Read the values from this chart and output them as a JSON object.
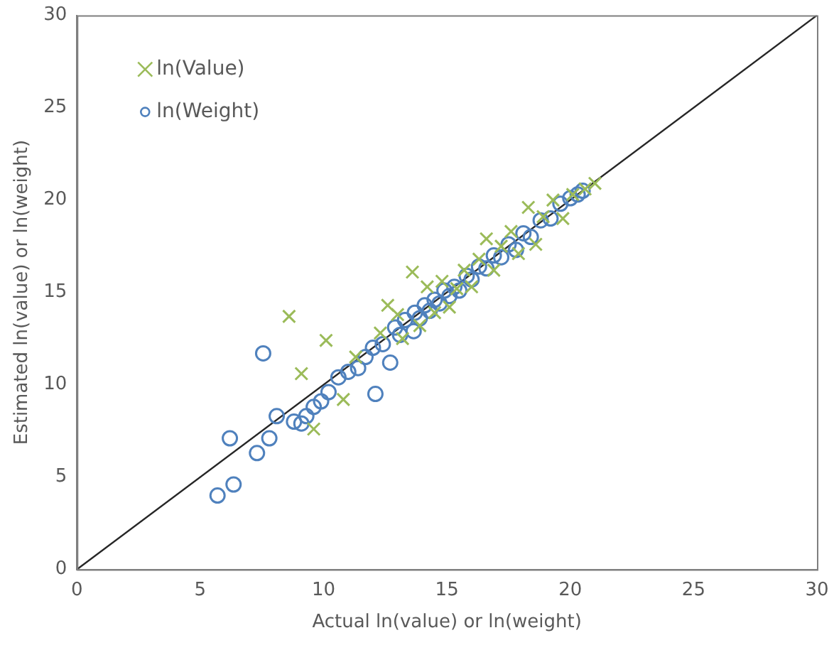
{
  "chart_data": {
    "type": "scatter",
    "xlabel": "Actual ln(value) or ln(weight)",
    "ylabel": "Estimated ln(value) or ln(weight)",
    "xlim": [
      0,
      30
    ],
    "ylim": [
      0,
      30
    ],
    "xticks": [
      0,
      5,
      10,
      15,
      20,
      25,
      30
    ],
    "yticks": [
      0,
      5,
      10,
      15,
      20,
      25,
      30
    ],
    "grid": false,
    "legend": "top left",
    "series": [
      {
        "name": "ln(Value)",
        "color": "#9bbb59",
        "marker": "cross",
        "x": [
          8.6,
          9.1,
          9.6,
          10.1,
          10.8,
          11.3,
          12.3,
          12.6,
          13.2,
          13.0,
          13.6,
          13.9,
          14.2,
          14.5,
          14.8,
          15.1,
          15.4,
          15.7,
          16.0,
          16.3,
          16.6,
          16.9,
          17.2,
          17.6,
          17.9,
          18.3,
          18.6,
          18.9,
          19.3,
          19.7,
          20.1,
          20.6,
          21.0
        ],
        "values": [
          13.7,
          10.6,
          7.6,
          12.4,
          9.2,
          11.5,
          12.8,
          14.3,
          12.5,
          13.8,
          16.1,
          13.2,
          15.3,
          13.9,
          15.6,
          14.2,
          15.2,
          16.2,
          15.3,
          16.8,
          17.9,
          16.2,
          17.5,
          18.3,
          17.1,
          19.6,
          17.6,
          19.1,
          20.0,
          19.0,
          20.3,
          20.6,
          20.9
        ]
      },
      {
        "name": "ln(Weight)",
        "color": "#4f81bd",
        "marker": "circle",
        "x": [
          5.7,
          6.35,
          6.2,
          7.3,
          7.55,
          7.8,
          8.1,
          8.8,
          9.1,
          9.3,
          9.6,
          9.9,
          10.2,
          10.6,
          11.0,
          11.4,
          11.7,
          12.1,
          12.0,
          12.4,
          12.7,
          12.9,
          13.1,
          13.3,
          13.65,
          13.7,
          13.9,
          14.1,
          14.3,
          14.5,
          14.7,
          14.9,
          15.1,
          15.3,
          15.5,
          15.8,
          16.0,
          16.3,
          16.6,
          16.9,
          17.2,
          17.5,
          17.8,
          18.1,
          18.4,
          18.8,
          19.2,
          19.6,
          20.0,
          20.3,
          20.5
        ],
        "values": [
          4.0,
          4.6,
          7.1,
          6.3,
          11.7,
          7.1,
          8.3,
          8.0,
          7.9,
          8.3,
          8.8,
          9.1,
          9.6,
          10.4,
          10.7,
          10.9,
          11.5,
          9.5,
          12.0,
          12.2,
          11.2,
          13.1,
          12.7,
          13.5,
          12.9,
          13.9,
          13.6,
          14.3,
          14.0,
          14.6,
          14.4,
          15.1,
          14.8,
          15.3,
          15.1,
          15.9,
          15.7,
          16.4,
          16.3,
          17.0,
          16.9,
          17.6,
          17.3,
          18.2,
          18.0,
          18.9,
          19.0,
          19.8,
          20.1,
          20.3,
          20.5
        ]
      },
      {
        "type": "line",
        "color": "#262626",
        "marker": "none",
        "x": [
          0,
          30
        ],
        "values": [
          0,
          30
        ]
      }
    ]
  }
}
